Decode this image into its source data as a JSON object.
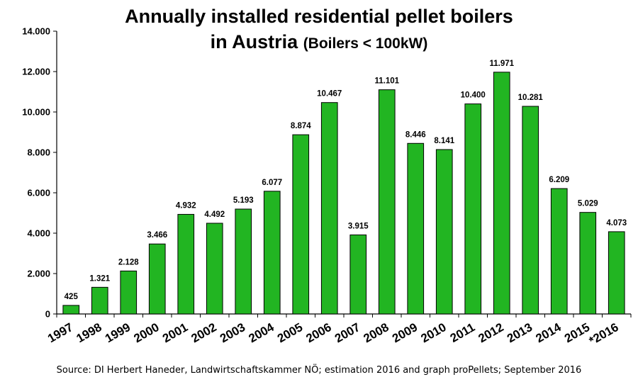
{
  "title_line1": "Annually installed residential pellet boilers",
  "title_line2_main": "in Austria",
  "title_line2_sub": "(Boilers < 100kW)",
  "source": "Source: DI Herbert Haneder, Landwirtschaftskammer NÖ; estimation 2016 and graph proPellets; September 2016",
  "colors": {
    "bar": "#22b522",
    "bar_stroke": "#000000"
  },
  "chart_data": {
    "type": "bar",
    "title": "Annually installed residential pellet boilers in Austria (Boilers < 100kW)",
    "categories": [
      "1997",
      "1998",
      "1999",
      "2000",
      "2001",
      "2002",
      "2003",
      "2004",
      "2005",
      "2006",
      "2007",
      "2008",
      "2009",
      "2010",
      "2011",
      "2012",
      "2013",
      "2014",
      "2015",
      "*2016"
    ],
    "values": [
      425,
      1321,
      2128,
      3466,
      4932,
      4492,
      5193,
      6077,
      8874,
      10467,
      3915,
      11101,
      8446,
      8141,
      10400,
      11971,
      10281,
      6209,
      5029,
      4073
    ],
    "value_labels": [
      "425",
      "1.321",
      "2.128",
      "3.466",
      "4.932",
      "4.492",
      "5.193",
      "6.077",
      "8.874",
      "10.467",
      "3.915",
      "11.101",
      "8.446",
      "8.141",
      "10.400",
      "11.971",
      "10.281",
      "6.209",
      "5.029",
      "4.073"
    ],
    "ylim": [
      0,
      14000
    ],
    "yticks": [
      0,
      2000,
      4000,
      6000,
      8000,
      10000,
      12000,
      14000
    ],
    "ytick_labels": [
      "0",
      "2.000",
      "4.000",
      "6.000",
      "8.000",
      "10.000",
      "12.000",
      "14.000"
    ],
    "xlabel": "",
    "ylabel": "",
    "grid": false,
    "legend": "none"
  }
}
